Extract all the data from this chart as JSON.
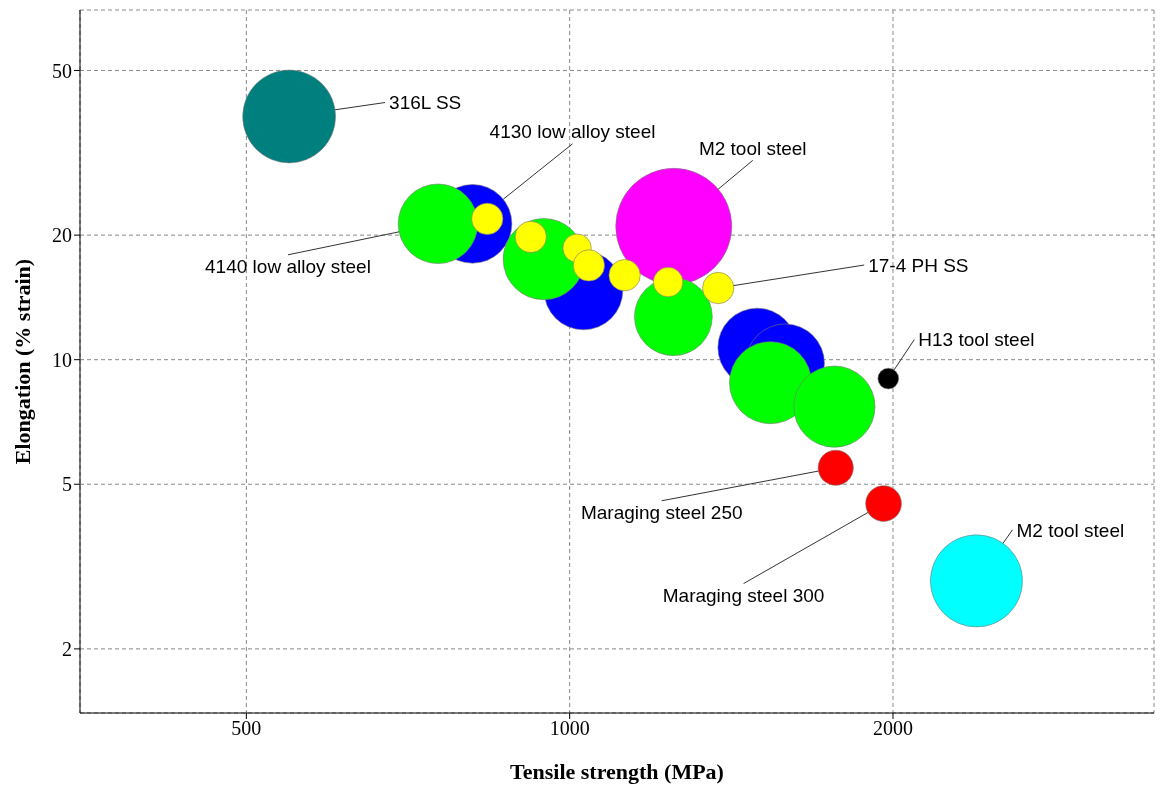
{
  "chart_data": {
    "type": "bubble",
    "xlabel": "Tensile strength (MPa)",
    "ylabel": "Elongation (% strain)",
    "log": "xy",
    "grid": true,
    "xlim": [
      350,
      3500
    ],
    "xticks": [
      500,
      1000,
      2000
    ],
    "ylim": [
      1.4,
      70
    ],
    "yticks": [
      2,
      5,
      10,
      20,
      50
    ],
    "x": [
      548,
      1250,
      812,
      754,
      1030,
      946,
      1495,
      1587,
      1249,
      1538,
      1764,
      838,
      920,
      1016,
      1042,
      1125,
      1235,
      1375,
      1980,
      1769,
      1960,
      2392
    ],
    "values": [
      38.7,
      21,
      21.3,
      21.3,
      14.7,
      17.5,
      10.7,
      9.8,
      12.7,
      8.8,
      7.7,
      21.9,
      19.8,
      18.6,
      16.9,
      16.0,
      15.4,
      14.9,
      9.0,
      5.48,
      4.49,
      2.92
    ],
    "sizes": [
      0.64,
      1,
      0.46,
      0.47,
      0.46,
      0.49,
      0.46,
      0.46,
      0.45,
      0.5,
      0.49,
      0.073,
      0.073,
      0.06,
      0.073,
      0.073,
      0.065,
      0.073,
      0.032,
      0.092,
      0.095,
      0.63
    ],
    "colors": [
      "#007f7f",
      "#ff00ff",
      "#0000ff",
      "#00ff00",
      "#0000ff",
      "#00ff00",
      "#0000ff",
      "#0000ff",
      "#00ff00",
      "#00ff00",
      "#00ff00",
      "#ffff00",
      "#ffff00",
      "#ffff00",
      "#ffff00",
      "#ffff00",
      "#ffff00",
      "#ffff00",
      "#000000",
      "#ff0000",
      "#ff0000",
      "#00ffff"
    ],
    "annotations": [
      {
        "text": "316L SS",
        "x": 548,
        "y": 38.7
      },
      {
        "text": "4130 low alloy steel",
        "x": 812,
        "y": 21.3
      },
      {
        "text": "M2 tool steel",
        "x": 1250,
        "y": 21
      },
      {
        "text": "4140 low alloy steel",
        "x": 754,
        "y": 21.3
      },
      {
        "text": "17-4 PH SS",
        "x": 1375,
        "y": 14.9
      },
      {
        "text": "H13 tool steel",
        "x": 1980,
        "y": 9.0
      },
      {
        "text": "Maraging steel 250",
        "x": 1769,
        "y": 5.48
      },
      {
        "text": "Maraging steel 300",
        "x": 1960,
        "y": 4.49
      },
      {
        "text": "M2 tool steel",
        "x": 2392,
        "y": 2.92
      }
    ]
  }
}
